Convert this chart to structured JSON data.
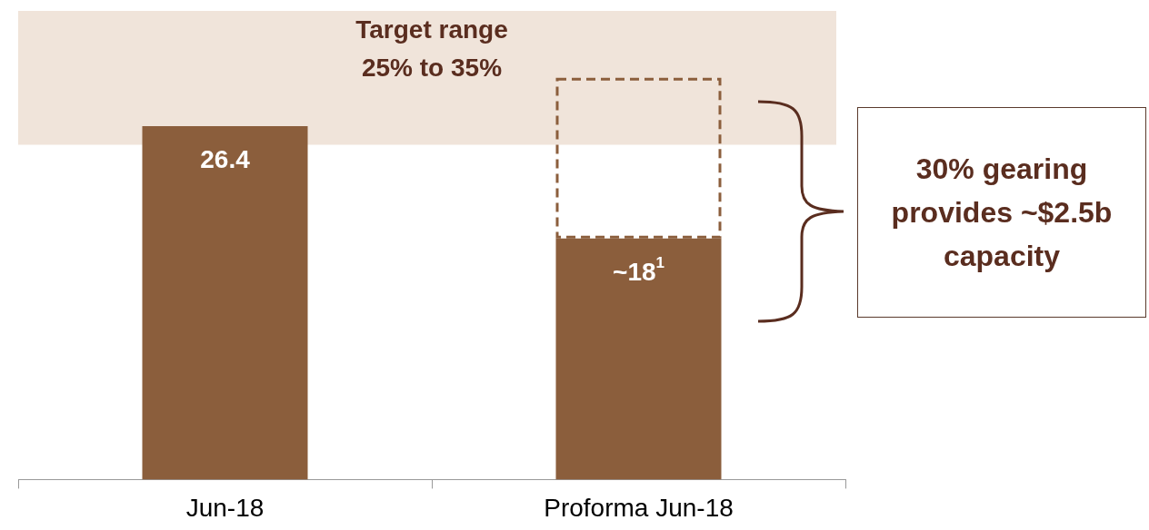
{
  "chart_data": {
    "type": "bar",
    "categories": [
      "Jun-18",
      "Proforma Jun-18"
    ],
    "stacked": true,
    "series": [
      {
        "color": "#8b5e3c",
        "values": [
          26.4,
          18
        ],
        "value_labels": [
          "26.4",
          "~18$^{1}$"
        ]
      },
      {
        "color": "#8b5e3c",
        "line_style": "dashed",
        "values": [
          null,
          12
        ]
      }
    ],
    "tick_labels": "x",
    "grid": false,
    "legend": false,
    "bands": [
      {
        "axis": "y",
        "from": 25,
        "to": 35,
        "label": "Target range\n25% to 35%",
        "color": "#f0e4da"
      }
    ],
    "annotations": [
      "30% gearing provides ~$2.5b capacity"
    ]
  }
}
